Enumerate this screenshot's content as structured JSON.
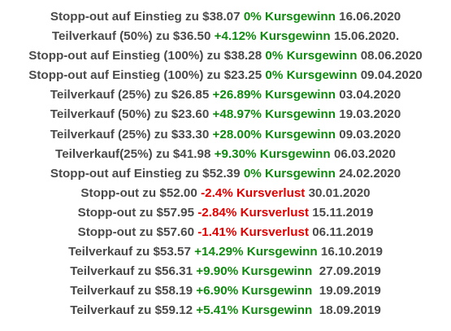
{
  "colors": {
    "text": "#4a4a4a",
    "gain": "#118a11",
    "loss": "#e00000"
  },
  "trades": [
    {
      "action": "Stopp-out auf Einstieg zu $38.07",
      "result": "0% Kursgewinn",
      "type": "gain",
      "date": "16.06.2020"
    },
    {
      "action": "Teilverkauf (50%) zu $36.50",
      "result": "+4.12% Kursgewinn",
      "type": "gain",
      "date": "15.06.2020."
    },
    {
      "action": "Stopp-out auf Einstieg (100%) zu $38.28",
      "result": "0% Kursgewinn",
      "type": "gain",
      "date": "08.06.2020"
    },
    {
      "action": "Stopp-out auf Einstieg (100%) zu $23.25",
      "result": "0% Kursgewinn",
      "type": "gain",
      "date": "09.04.2020"
    },
    {
      "action": "Teilverkauf (25%) zu $26.85",
      "result": "+26.89% Kursgewinn",
      "type": "gain",
      "date": "03.04.2020"
    },
    {
      "action": "Teilverkauf (50%) zu $23.60",
      "result": "+48.97% Kursgewinn",
      "type": "gain",
      "date": "19.03.2020"
    },
    {
      "action": "Teilverkauf (25%) zu $33.30",
      "result": "+28.00% Kursgewinn",
      "type": "gain",
      "date": "09.03.2020"
    },
    {
      "action": "Teilverkauf(25%) zu $41.98",
      "result": "+9.30% Kursgewinn",
      "type": "gain",
      "date": "06.03.2020"
    },
    {
      "action": "Stopp-out auf Einstieg zu $52.39",
      "result": "0% Kursgewinn",
      "type": "gain",
      "date": "24.02.2020"
    },
    {
      "action": "Stopp-out zu $52.00",
      "result": "-2.4% Kursverlust",
      "type": "loss",
      "date": "30.01.2020"
    },
    {
      "action": "Stopp-out zu $57.95",
      "result": "-2.84% Kursverlust",
      "type": "loss",
      "date": "15.11.2019"
    },
    {
      "action": "Stopp-out zu $57.60",
      "result": "-1.41% Kursverlust",
      "type": "loss",
      "date": "06.11.2019"
    },
    {
      "action": "Teilverkauf zu $53.57",
      "result": "+14.29% Kursgewinn",
      "type": "gain",
      "date": "16.10.2019"
    },
    {
      "action": "Teilverkauf zu $56.31",
      "result": "+9.90% Kursgewinn ",
      "type": "gain",
      "date": "27.09.2019"
    },
    {
      "action": "Teilverkauf zu $58.19",
      "result": "+6.90% Kursgewinn ",
      "type": "gain",
      "date": "19.09.2019"
    },
    {
      "action": "Teilverkauf zu $59.12",
      "result": "+5.41% Kursgewinn ",
      "type": "gain",
      "date": "18.09.2019"
    }
  ]
}
